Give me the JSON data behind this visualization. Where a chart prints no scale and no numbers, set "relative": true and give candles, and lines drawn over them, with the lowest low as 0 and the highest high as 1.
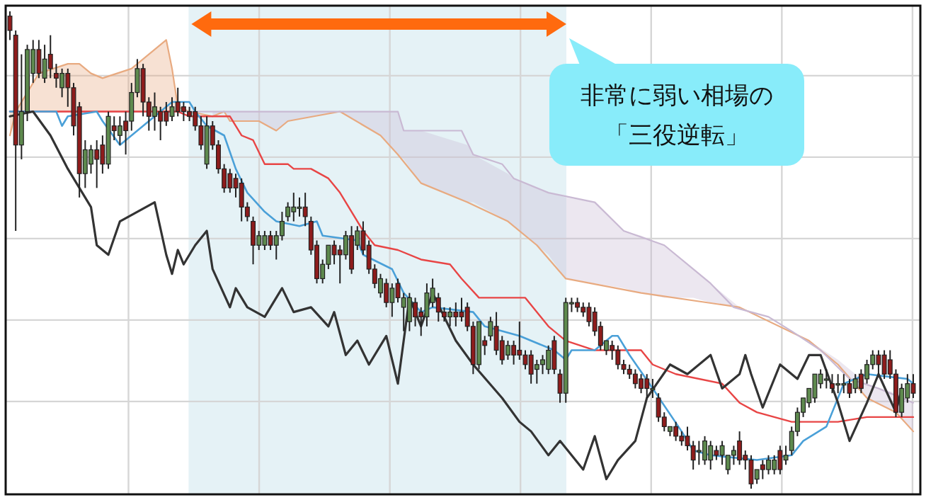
{
  "chart_data": {
    "type": "candlestick",
    "relative": true,
    "grid": true,
    "categories": [
      null,
      null,
      null,
      null,
      null,
      null,
      null,
      null,
      null,
      null,
      null,
      null,
      null,
      null,
      null,
      null,
      null,
      null,
      null,
      null,
      null,
      null,
      null,
      null,
      null,
      null,
      null,
      null,
      null,
      null,
      null,
      null,
      null,
      null,
      null,
      null,
      null,
      null,
      null,
      null,
      null,
      null,
      null,
      null,
      null,
      null,
      null,
      null,
      null,
      null,
      null,
      null,
      null,
      null,
      null,
      null,
      null,
      null,
      null,
      null,
      null,
      null,
      null,
      null,
      null,
      null,
      null,
      null,
      null,
      null,
      null,
      null,
      null,
      null,
      null,
      null,
      null,
      null,
      null,
      null,
      null,
      null,
      null,
      null,
      null,
      null,
      null,
      null,
      null,
      null,
      null,
      null,
      null,
      null,
      null,
      null,
      null,
      null,
      null,
      null,
      null,
      null,
      null,
      null,
      null,
      null,
      null,
      null,
      null,
      null,
      null,
      null,
      null,
      null,
      null,
      null,
      null,
      null,
      null,
      null,
      null,
      null,
      null,
      null,
      null,
      null,
      null,
      null,
      null,
      null,
      null,
      null,
      null,
      null,
      null,
      null,
      null,
      null,
      null,
      null,
      null,
      null,
      null,
      null,
      null,
      null,
      null,
      null,
      null,
      null,
      null,
      null,
      null,
      null,
      null,
      null,
      null
    ],
    "ohlc": [
      [
        0.99,
        1.0,
        0.94,
        0.96
      ],
      [
        0.95,
        0.96,
        0.54,
        0.72
      ],
      [
        0.72,
        0.91,
        0.69,
        0.79
      ],
      [
        0.79,
        0.93,
        0.77,
        0.92
      ],
      [
        0.87,
        0.94,
        0.85,
        0.92
      ],
      [
        0.92,
        0.94,
        0.86,
        0.87
      ],
      [
        0.86,
        0.93,
        0.85,
        0.9
      ],
      [
        0.91,
        0.95,
        0.86,
        0.88
      ],
      [
        0.87,
        0.89,
        0.84,
        0.86
      ],
      [
        0.84,
        0.88,
        0.82,
        0.87
      ],
      [
        0.87,
        0.88,
        0.8,
        0.84
      ],
      [
        0.84,
        0.85,
        0.74,
        0.76
      ],
      [
        0.8,
        0.81,
        0.61,
        0.66
      ],
      [
        0.66,
        0.73,
        0.63,
        0.71
      ],
      [
        0.68,
        0.72,
        0.66,
        0.71
      ],
      [
        0.71,
        0.73,
        0.63,
        0.69
      ],
      [
        0.72,
        0.74,
        0.66,
        0.68
      ],
      [
        0.68,
        0.79,
        0.67,
        0.78
      ],
      [
        0.76,
        0.78,
        0.73,
        0.75
      ],
      [
        0.74,
        0.78,
        0.72,
        0.76
      ],
      [
        0.77,
        0.79,
        0.7,
        0.75
      ],
      [
        0.77,
        0.85,
        0.75,
        0.83
      ],
      [
        0.83,
        0.9,
        0.82,
        0.88
      ],
      [
        0.88,
        0.89,
        0.78,
        0.81
      ],
      [
        0.81,
        0.82,
        0.75,
        0.78
      ],
      [
        0.78,
        0.83,
        0.75,
        0.8
      ],
      [
        0.79,
        0.8,
        0.73,
        0.77
      ],
      [
        0.79,
        0.81,
        0.76,
        0.77
      ],
      [
        0.78,
        0.82,
        0.77,
        0.8
      ],
      [
        0.81,
        0.84,
        0.78,
        0.79
      ],
      [
        0.8,
        0.81,
        0.77,
        0.79
      ],
      [
        0.79,
        0.8,
        0.77,
        0.78
      ],
      [
        0.79,
        0.8,
        0.75,
        0.76
      ],
      [
        0.76,
        0.78,
        0.71,
        0.72
      ],
      [
        0.68,
        0.78,
        0.67,
        0.76
      ],
      [
        0.76,
        0.77,
        0.71,
        0.72
      ],
      [
        0.72,
        0.73,
        0.66,
        0.67
      ],
      [
        0.67,
        0.68,
        0.62,
        0.63
      ],
      [
        0.66,
        0.67,
        0.62,
        0.63
      ],
      [
        0.65,
        0.66,
        0.61,
        0.63
      ],
      [
        0.64,
        0.65,
        0.56,
        0.59
      ],
      [
        0.59,
        0.6,
        0.56,
        0.57
      ],
      [
        0.56,
        0.57,
        0.47,
        0.51
      ],
      [
        0.51,
        0.54,
        0.5,
        0.53
      ],
      [
        0.51,
        0.54,
        0.5,
        0.53
      ],
      [
        0.53,
        0.54,
        0.5,
        0.51
      ],
      [
        0.51,
        0.54,
        0.48,
        0.53
      ],
      [
        0.53,
        0.58,
        0.52,
        0.56
      ],
      [
        0.57,
        0.6,
        0.56,
        0.59
      ],
      [
        0.58,
        0.62,
        0.56,
        0.59
      ],
      [
        0.59,
        0.61,
        0.57,
        0.59
      ],
      [
        0.59,
        0.62,
        0.55,
        0.57
      ],
      [
        0.56,
        0.57,
        0.49,
        0.5
      ],
      [
        0.51,
        0.52,
        0.43,
        0.44
      ],
      [
        0.44,
        0.48,
        0.43,
        0.47
      ],
      [
        0.47,
        0.51,
        0.46,
        0.51
      ],
      [
        0.51,
        0.52,
        0.47,
        0.49
      ],
      [
        0.5,
        0.51,
        0.43,
        0.49
      ],
      [
        0.49,
        0.54,
        0.48,
        0.53
      ],
      [
        0.53,
        0.55,
        0.45,
        0.46
      ],
      [
        0.51,
        0.55,
        0.5,
        0.54
      ],
      [
        0.54,
        0.56,
        0.49,
        0.5
      ],
      [
        0.51,
        0.52,
        0.45,
        0.46
      ],
      [
        0.46,
        0.47,
        0.42,
        0.43
      ],
      [
        0.41,
        0.45,
        0.4,
        0.44
      ],
      [
        0.43,
        0.44,
        0.38,
        0.39
      ],
      [
        0.39,
        0.43,
        0.36,
        0.42
      ],
      [
        0.43,
        0.44,
        0.39,
        0.4
      ],
      [
        0.38,
        0.41,
        0.33,
        0.4
      ],
      [
        0.35,
        0.41,
        0.33,
        0.4
      ],
      [
        0.39,
        0.4,
        0.34,
        0.36
      ],
      [
        0.37,
        0.38,
        0.32,
        0.36
      ],
      [
        0.36,
        0.43,
        0.34,
        0.41
      ],
      [
        0.39,
        0.44,
        0.38,
        0.42
      ],
      [
        0.4,
        0.41,
        0.35,
        0.37
      ],
      [
        0.37,
        0.38,
        0.35,
        0.36
      ],
      [
        0.36,
        0.38,
        0.34,
        0.37
      ],
      [
        0.37,
        0.39,
        0.34,
        0.36
      ],
      [
        0.37,
        0.4,
        0.35,
        0.36
      ],
      [
        0.38,
        0.39,
        0.33,
        0.34
      ],
      [
        0.34,
        0.35,
        0.24,
        0.26
      ],
      [
        0.26,
        0.35,
        0.25,
        0.35
      ],
      [
        0.31,
        0.32,
        0.28,
        0.3
      ],
      [
        0.32,
        0.36,
        0.31,
        0.35
      ],
      [
        0.34,
        0.37,
        0.28,
        0.29
      ],
      [
        0.31,
        0.32,
        0.26,
        0.27
      ],
      [
        0.28,
        0.31,
        0.27,
        0.3
      ],
      [
        0.3,
        0.31,
        0.26,
        0.28
      ],
      [
        0.29,
        0.35,
        0.27,
        0.28
      ],
      [
        0.28,
        0.29,
        0.25,
        0.26
      ],
      [
        0.28,
        0.29,
        0.22,
        0.24
      ],
      [
        0.25,
        0.27,
        0.22,
        0.26
      ],
      [
        0.26,
        0.28,
        0.24,
        0.27
      ],
      [
        0.25,
        0.3,
        0.24,
        0.29
      ],
      [
        0.31,
        0.32,
        0.24,
        0.25
      ],
      [
        0.24,
        0.25,
        0.18,
        0.2
      ],
      [
        0.2,
        0.4,
        0.18,
        0.39
      ],
      [
        0.39,
        0.4,
        0.37,
        0.39
      ],
      [
        0.39,
        0.4,
        0.37,
        0.38
      ],
      [
        0.38,
        0.39,
        0.36,
        0.37
      ],
      [
        0.38,
        0.39,
        0.34,
        0.35
      ],
      [
        0.37,
        0.38,
        0.32,
        0.33
      ],
      [
        0.34,
        0.35,
        0.29,
        0.3
      ],
      [
        0.29,
        0.31,
        0.28,
        0.31
      ],
      [
        0.3,
        0.31,
        0.27,
        0.29
      ],
      [
        0.29,
        0.3,
        0.25,
        0.26
      ],
      [
        0.26,
        0.27,
        0.24,
        0.25
      ],
      [
        0.25,
        0.26,
        0.23,
        0.24
      ],
      [
        0.24,
        0.25,
        0.21,
        0.22
      ],
      [
        0.23,
        0.24,
        0.2,
        0.21
      ],
      [
        0.23,
        0.24,
        0.19,
        0.21
      ],
      [
        0.21,
        0.23,
        0.19,
        0.21
      ],
      [
        0.19,
        0.2,
        0.14,
        0.15
      ],
      [
        0.15,
        0.16,
        0.12,
        0.13
      ],
      [
        0.12,
        0.13,
        0.11,
        0.13
      ],
      [
        0.13,
        0.14,
        0.1,
        0.11
      ],
      [
        0.11,
        0.12,
        0.09,
        0.1
      ],
      [
        0.11,
        0.13,
        0.08,
        0.09
      ],
      [
        0.09,
        0.1,
        0.04,
        0.06
      ],
      [
        0.08,
        0.1,
        0.05,
        0.08
      ],
      [
        0.06,
        0.11,
        0.05,
        0.1
      ],
      [
        0.06,
        0.1,
        0.04,
        0.09
      ],
      [
        0.08,
        0.09,
        0.06,
        0.07
      ],
      [
        0.07,
        0.1,
        0.05,
        0.09
      ],
      [
        0.04,
        0.07,
        0.03,
        0.07
      ],
      [
        0.07,
        0.09,
        0.05,
        0.08
      ],
      [
        0.1,
        0.12,
        0.05,
        0.06
      ],
      [
        0.07,
        0.08,
        0.04,
        0.06
      ],
      [
        0.06,
        0.07,
        0.0,
        0.01
      ],
      [
        0.02,
        0.04,
        0.01,
        0.04
      ],
      [
        0.05,
        0.06,
        0.02,
        0.04
      ],
      [
        0.04,
        0.07,
        0.03,
        0.06
      ],
      [
        0.04,
        0.07,
        0.03,
        0.06
      ],
      [
        0.08,
        0.09,
        0.03,
        0.04
      ],
      [
        0.06,
        0.09,
        0.05,
        0.07
      ],
      [
        0.08,
        0.13,
        0.07,
        0.12
      ],
      [
        0.12,
        0.17,
        0.11,
        0.16
      ],
      [
        0.16,
        0.19,
        0.15,
        0.19
      ],
      [
        0.18,
        0.21,
        0.17,
        0.21
      ],
      [
        0.19,
        0.24,
        0.18,
        0.24
      ],
      [
        0.22,
        0.25,
        0.21,
        0.24
      ],
      [
        0.23,
        0.25,
        0.21,
        0.23
      ],
      [
        0.22,
        0.24,
        0.2,
        0.21
      ],
      [
        0.22,
        0.24,
        0.2,
        0.22
      ],
      [
        0.22,
        0.24,
        0.2,
        0.22
      ],
      [
        0.22,
        0.23,
        0.19,
        0.2
      ],
      [
        0.21,
        0.24,
        0.2,
        0.23
      ],
      [
        0.24,
        0.25,
        0.2,
        0.21
      ],
      [
        0.23,
        0.27,
        0.22,
        0.26
      ],
      [
        0.26,
        0.29,
        0.25,
        0.28
      ],
      [
        0.28,
        0.29,
        0.24,
        0.26
      ],
      [
        0.28,
        0.29,
        0.23,
        0.24
      ],
      [
        0.27,
        0.29,
        0.23,
        0.24
      ],
      [
        0.24,
        0.25,
        0.15,
        0.16
      ],
      [
        0.16,
        0.22,
        0.15,
        0.21
      ],
      [
        0.19,
        0.24,
        0.18,
        0.22
      ],
      [
        0.22,
        0.24,
        0.19,
        0.2
      ]
    ],
    "series": [
      {
        "type": "line",
        "color": "#e8aa80",
        "upper": [
          0.79,
          0.79,
          null,
          null,
          null,
          0.87,
          null,
          null,
          null,
          null,
          0.89,
          null,
          0.89,
          null,
          0.87,
          null,
          0.86,
          null,
          null,
          null,
          null,
          0.88,
          null,
          0.9,
          null,
          null,
          0.93,
          0.94,
          0.88,
          0.8,
          null,
          0.79,
          null,
          null,
          null,
          null,
          null,
          null,
          null,
          null,
          null,
          null,
          null,
          null,
          null,
          null,
          null,
          null,
          null,
          null,
          null,
          null,
          null,
          null,
          null,
          null,
          null,
          null,
          null,
          null,
          null,
          null,
          null,
          null,
          null,
          null,
          null,
          null,
          null,
          null,
          null,
          null,
          null,
          null,
          null,
          null,
          null,
          null,
          null,
          null,
          null,
          null,
          null,
          null,
          null,
          null,
          null,
          null,
          null,
          null,
          null,
          null,
          null,
          null,
          null,
          null,
          null,
          null,
          null,
          null,
          null,
          null,
          null,
          null,
          null,
          null,
          null,
          null,
          null,
          null,
          null,
          null,
          null,
          null,
          null,
          null,
          null,
          null,
          null,
          null,
          null,
          null,
          null,
          null,
          null,
          null,
          null,
          null,
          null,
          null,
          null,
          null,
          null,
          null,
          null,
          null,
          null,
          null,
          null,
          null,
          null,
          null,
          null,
          null,
          null,
          null,
          null,
          null,
          null,
          null,
          null,
          null,
          null,
          null,
          null,
          null,
          null
        ],
        "lower": [
          0.74,
          0.79,
          null,
          null,
          null,
          0.79,
          null,
          null,
          null,
          null,
          0.79,
          null,
          0.79,
          null,
          0.79,
          null,
          0.79,
          null,
          null,
          null,
          null,
          0.79,
          null,
          0.79,
          null,
          null,
          0.79,
          0.79,
          0.79,
          0.79,
          null,
          0.79,
          null,
          null,
          null,
          null,
          null,
          null,
          null,
          null,
          null,
          null,
          null,
          null,
          null,
          null,
          null,
          null,
          null,
          null,
          null,
          null,
          null,
          null,
          null,
          null,
          null,
          null,
          null,
          null,
          null,
          null,
          null,
          null,
          null,
          null,
          null,
          null,
          null,
          null,
          null,
          null,
          null,
          null,
          null,
          null,
          null,
          null,
          null,
          null,
          null,
          null,
          null,
          null,
          null,
          null,
          null,
          null,
          null,
          null,
          null,
          null,
          null,
          null,
          null,
          null,
          null,
          null,
          null,
          null,
          null,
          null,
          null,
          null,
          null,
          null,
          null,
          null,
          null,
          null,
          null,
          null,
          null,
          null,
          null,
          null,
          null,
          null,
          null,
          null,
          null,
          null,
          null,
          null,
          null,
          null,
          null,
          null,
          null,
          null,
          null,
          null,
          null,
          null,
          null,
          null,
          null,
          null,
          null,
          null,
          null,
          null,
          null,
          null,
          null,
          null,
          null,
          null,
          null,
          null,
          null,
          null,
          null,
          null,
          null,
          null,
          null
        ],
        "values": [
          0.74,
          0.79,
          null,
          null,
          null,
          0.87,
          null,
          null,
          null,
          null,
          0.89,
          null,
          0.89,
          null,
          0.87,
          null,
          0.86,
          null,
          null,
          null,
          null,
          0.88,
          null,
          0.9,
          null,
          null,
          0.93,
          0.94,
          0.88,
          0.8,
          null,
          0.79,
          null,
          null,
          null,
          0.78,
          null,
          0.79,
          0.77,
          null,
          null,
          null,
          null,
          0.77,
          null,
          null,
          0.75,
          null,
          0.77,
          null,
          null,
          null,
          null,
          null,
          null,
          null,
          null,
          0.79,
          null,
          null,
          null,
          null,
          null,
          null,
          0.74,
          null,
          null,
          0.7,
          null,
          null,
          null,
          0.64,
          null,
          null,
          null,
          null,
          null,
          null,
          null,
          0.6,
          null,
          null,
          null,
          null,
          null,
          null,
          0.56,
          null,
          null,
          null,
          null,
          0.51,
          null,
          null,
          null,
          null,
          0.44,
          null,
          null,
          null,
          null,
          null,
          null,
          null,
          null,
          null,
          null,
          null,
          null,
          0.41,
          null,
          null,
          null,
          null,
          null,
          null,
          null,
          null,
          null,
          null,
          null,
          null,
          null,
          null,
          null,
          null,
          0.38,
          null,
          null,
          null,
          null,
          null,
          null,
          null,
          null,
          null,
          null,
          null,
          0.31,
          null,
          null,
          null,
          null,
          0.26,
          null,
          null,
          null,
          null,
          0.19,
          null,
          null,
          null,
          null,
          0.16,
          null,
          null,
          0.12
        ]
      },
      {
        "type": "line",
        "color": "#c9b9d3",
        "upper": [
          null,
          null,
          null,
          null,
          null,
          null,
          null,
          null,
          null,
          null,
          null,
          null,
          null,
          null,
          null,
          null,
          null,
          null,
          null,
          null,
          null,
          null,
          null,
          null,
          null,
          null,
          null,
          null,
          null,
          null,
          null,
          null,
          null,
          null,
          null,
          0.79,
          null,
          0.79,
          0.79,
          null,
          null,
          null,
          null,
          0.79,
          null,
          null,
          0.79,
          null,
          0.79,
          null,
          null,
          null,
          null,
          null,
          null,
          null,
          null,
          0.79,
          null,
          null,
          null,
          null,
          null,
          null,
          0.79,
          null,
          null,
          0.79,
          0.75,
          null,
          null,
          0.75,
          null,
          null,
          null,
          null,
          null,
          null,
          null,
          0.72,
          0.7,
          null,
          null,
          null,
          null,
          null,
          0.66,
          0.65,
          null,
          null,
          null,
          0.63,
          null,
          0.62,
          null,
          null,
          0.61,
          null,
          null,
          null,
          null,
          0.6,
          null,
          null,
          null,
          null,
          0.54,
          null,
          null,
          0.53,
          null,
          null,
          null,
          0.51,
          null,
          null,
          null,
          null,
          0.46,
          null,
          null,
          0.43,
          null,
          null,
          null,
          null,
          0.38,
          null,
          null,
          null,
          null,
          null,
          null,
          null,
          null,
          null,
          null,
          null,
          0.31,
          null,
          null,
          null,
          null,
          0.27,
          null,
          null,
          null,
          null,
          0.22,
          null,
          null,
          null,
          null,
          0.2,
          null,
          null,
          0.18
        ],
        "lower": [
          null,
          null,
          null,
          null,
          null,
          null,
          null,
          null,
          null,
          null,
          null,
          null,
          null,
          null,
          null,
          null,
          null,
          null,
          null,
          null,
          null,
          null,
          null,
          null,
          null,
          null,
          null,
          null,
          null,
          null,
          null,
          null,
          null,
          null,
          null,
          0.78,
          null,
          0.79,
          0.77,
          null,
          null,
          null,
          null,
          0.77,
          null,
          null,
          0.75,
          null,
          0.77,
          null,
          null,
          null,
          null,
          null,
          null,
          null,
          null,
          0.79,
          null,
          null,
          null,
          null,
          null,
          null,
          0.74,
          null,
          null,
          0.7,
          0.69,
          null,
          null,
          0.64,
          null,
          null,
          null,
          null,
          null,
          null,
          null,
          0.6,
          0.6,
          null,
          null,
          null,
          null,
          null,
          0.56,
          0.55,
          null,
          null,
          null,
          0.51,
          null,
          0.49,
          null,
          null,
          0.44,
          null,
          null,
          null,
          null,
          0.43,
          null,
          null,
          null,
          null,
          0.42,
          null,
          null,
          0.41,
          null,
          null,
          null,
          0.4,
          null,
          null,
          null,
          null,
          0.4,
          null,
          null,
          0.39,
          null,
          null,
          null,
          null,
          0.38,
          null,
          null,
          null,
          null,
          null,
          null,
          null,
          null,
          null,
          null,
          null,
          0.31,
          null,
          null,
          null,
          null,
          0.26,
          null,
          null,
          null,
          null,
          0.19,
          null,
          null,
          null,
          null,
          0.16,
          null,
          null,
          0.12
        ],
        "values": [
          0.79,
          null,
          null,
          null,
          null,
          null,
          null,
          null,
          null,
          null,
          null,
          null,
          null,
          null,
          null,
          null,
          null,
          null,
          null,
          null,
          null,
          null,
          null,
          null,
          null,
          null,
          null,
          null,
          null,
          null,
          null,
          null,
          null,
          null,
          null,
          null,
          null,
          null,
          null,
          null,
          null,
          null,
          null,
          null,
          null,
          null,
          null,
          null,
          null,
          null,
          null,
          null,
          null,
          null,
          null,
          null,
          null,
          null,
          null,
          null,
          null,
          null,
          null,
          null,
          null,
          null,
          null,
          0.79,
          0.75,
          null,
          null,
          null,
          null,
          null,
          null,
          null,
          null,
          null,
          0.75,
          null,
          0.7,
          null,
          null,
          null,
          null,
          0.68,
          null,
          0.65,
          null,
          null,
          null,
          null,
          null,
          0.62,
          null,
          null,
          null,
          null,
          null,
          null,
          null,
          0.6,
          null,
          null,
          null,
          null,
          0.54,
          null,
          null,
          null,
          null,
          null,
          null,
          0.51,
          null,
          null,
          null,
          null,
          0.46,
          null,
          null,
          0.43,
          null,
          null,
          null,
          0.38,
          null,
          null,
          null,
          null,
          null,
          0.36,
          null,
          null,
          null,
          0.33,
          null,
          null,
          null,
          null,
          0.29,
          null,
          null,
          null,
          null,
          0.23,
          null,
          null,
          null,
          null,
          0.21,
          null,
          null,
          null,
          null,
          null,
          0.18
        ]
      },
      {
        "type": "line",
        "color": "#e84545",
        "values": [
          0.79,
          null,
          null,
          null,
          null,
          null,
          null,
          null,
          null,
          null,
          null,
          null,
          null,
          null,
          null,
          null,
          null,
          null,
          null,
          null,
          null,
          null,
          null,
          null,
          null,
          null,
          null,
          null,
          null,
          0.79,
          null,
          0.78,
          null,
          null,
          null,
          null,
          null,
          null,
          0.78,
          null,
          0.74,
          null,
          0.73,
          null,
          0.68,
          null,
          null,
          null,
          0.68,
          0.67,
          null,
          null,
          0.67,
          null,
          null,
          0.65,
          null,
          0.62,
          null,
          null,
          null,
          0.54,
          null,
          0.51,
          null,
          null,
          null,
          0.5,
          null,
          null,
          null,
          0.48,
          null,
          null,
          null,
          null,
          0.47,
          null,
          0.44,
          null,
          null,
          0.4,
          null,
          null,
          null,
          null,
          null,
          null,
          null,
          0.4,
          null,
          null,
          null,
          0.34,
          null,
          null,
          0.31,
          null,
          null,
          null,
          null,
          0.29,
          null,
          null,
          null,
          null,
          null,
          null,
          null,
          0.29,
          null,
          0.26,
          null,
          null,
          null,
          0.24,
          null,
          null,
          null,
          null,
          null,
          null,
          null,
          0.22,
          null,
          null,
          0.18,
          null,
          null,
          0.16,
          null,
          null,
          null,
          null,
          null,
          0.14,
          null,
          null,
          null,
          null,
          null,
          null,
          null,
          0.14,
          null,
          null,
          null,
          null,
          0.15,
          null,
          null,
          null,
          null,
          null,
          null,
          null,
          0.15
        ]
      },
      {
        "type": "line",
        "color": "#4aa0d8",
        "values": [
          0.79,
          null,
          null,
          null,
          null,
          null,
          null,
          null,
          0.79,
          0.76,
          0.78,
          null,
          null,
          null,
          null,
          0.79,
          0.77,
          null,
          null,
          0.72,
          null,
          null,
          null,
          0.76,
          null,
          null,
          null,
          null,
          0.81,
          null,
          null,
          0.81,
          0.79,
          null,
          0.76,
          null,
          null,
          0.74,
          null,
          0.67,
          null,
          0.62,
          null,
          null,
          0.58,
          null,
          0.56,
          null,
          null,
          null,
          0.55,
          null,
          null,
          0.56,
          0.53,
          null,
          null,
          null,
          null,
          null,
          0.52,
          0.49,
          null,
          null,
          null,
          null,
          0.46,
          null,
          0.41,
          null,
          null,
          0.37,
          null,
          0.38,
          null,
          null,
          null,
          null,
          null,
          null,
          0.37,
          null,
          0.34,
          null,
          null,
          null,
          null,
          null,
          0.32,
          null,
          null,
          null,
          null,
          null,
          0.29,
          null,
          0.27,
          0.29,
          null,
          null,
          null,
          0.29,
          null,
          null,
          0.32,
          0.32,
          null,
          0.28,
          null,
          null,
          null,
          0.21,
          null,
          null,
          null,
          null,
          0.12,
          null,
          0.08,
          null,
          null,
          0.07,
          null,
          null,
          null,
          null,
          null,
          null,
          null,
          0.06,
          null,
          null,
          null,
          null,
          null,
          0.07,
          null,
          0.1,
          null,
          null,
          null,
          0.13,
          null,
          0.19,
          0.22,
          null,
          null,
          null,
          0.24,
          null,
          null,
          null,
          null,
          null,
          null,
          0.23,
          0.22
        ]
      },
      {
        "type": "line",
        "color": "#333333",
        "values": [
          0.78,
          null,
          null,
          null,
          0.79,
          null,
          null,
          0.74,
          null,
          null,
          0.67,
          null,
          null,
          null,
          0.59,
          0.51,
          null,
          0.49,
          null,
          0.56,
          null,
          null,
          0.58,
          null,
          null,
          0.6,
          null,
          0.49,
          0.45,
          0.5,
          0.47,
          null,
          0.51,
          null,
          0.54,
          0.46,
          null,
          null,
          0.38,
          0.42,
          null,
          0.38,
          null,
          null,
          0.36,
          null,
          null,
          0.42,
          null,
          0.37,
          null,
          null,
          0.38,
          null,
          null,
          0.34,
          0.37,
          null,
          0.28,
          null,
          0.31,
          null,
          0.26,
          null,
          null,
          0.32,
          null,
          0.22,
          null,
          0.4,
          null,
          0.34,
          null,
          0.41,
          null,
          null,
          null,
          0.31,
          null,
          null,
          0.26,
          null,
          null,
          null,
          null,
          0.19,
          null,
          null,
          0.14,
          null,
          0.12,
          null,
          null,
          0.07,
          null,
          0.1,
          null,
          null,
          null,
          0.04,
          null,
          0.11,
          null,
          0.02,
          null,
          0.06,
          null,
          null,
          0.1,
          null,
          0.19,
          null,
          null,
          null,
          0.26,
          null,
          null,
          0.24,
          null,
          null,
          null,
          0.28,
          null,
          0.21,
          null,
          null,
          0.24,
          0.28,
          0.24,
          null,
          0.17,
          null,
          null,
          0.26,
          null,
          null,
          0.23,
          null,
          0.28,
          null,
          0.28,
          null,
          null,
          0.18,
          null,
          0.1,
          null,
          null,
          0.18,
          null,
          0.24,
          null,
          null,
          0.16,
          0.21,
          null,
          null
        ]
      }
    ],
    "annotations": [
      "非常に弱い相場の",
      "「三役逆転」"
    ]
  }
}
